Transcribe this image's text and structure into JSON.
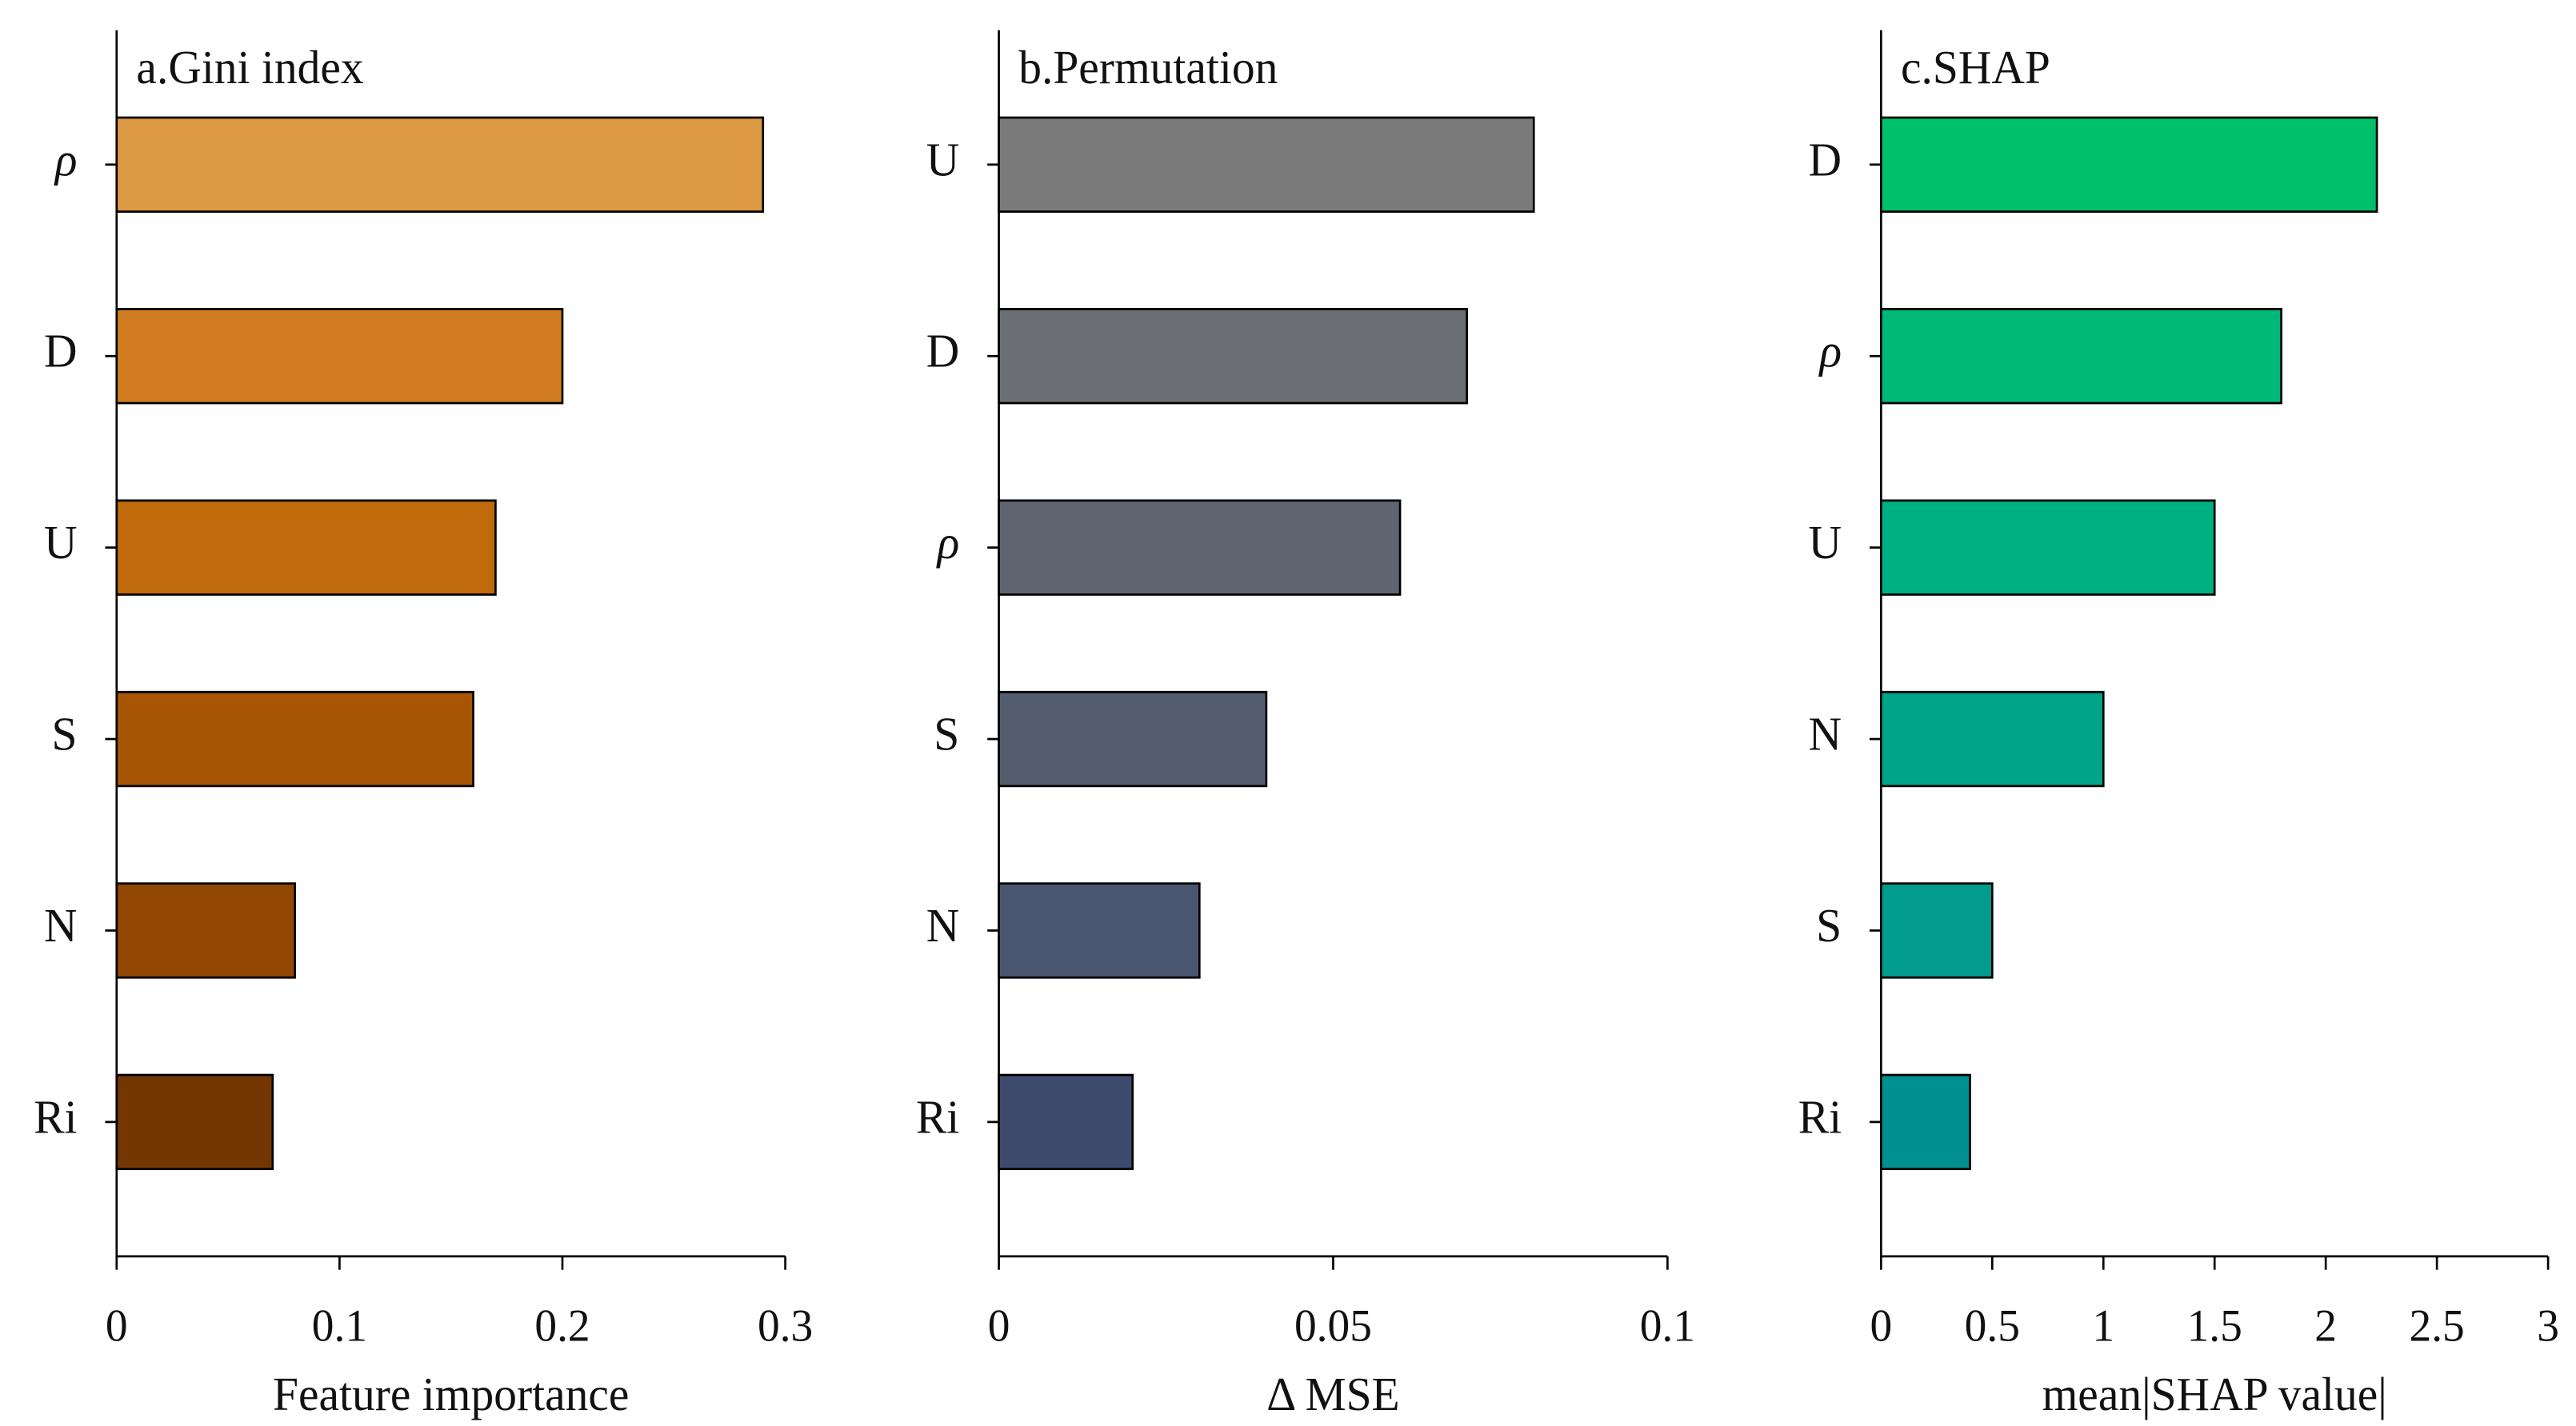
{
  "chart_data": [
    {
      "type": "bar",
      "orientation": "horizontal",
      "title": "a.Gini index",
      "x_label": "Feature importance",
      "categories": [
        "ρ",
        "D",
        "U",
        "S",
        "N",
        "Ri"
      ],
      "values": [
        0.29,
        0.2,
        0.17,
        0.16,
        0.08,
        0.07
      ],
      "colors": [
        "#dc9a45",
        "#d17e22",
        "#bf6a0b",
        "#a85505",
        "#924703",
        "#743602"
      ],
      "xlim": [
        0,
        0.3
      ],
      "xticks": [
        0,
        0.1,
        0.2,
        0.3
      ]
    },
    {
      "type": "bar",
      "orientation": "horizontal",
      "title": "b.Permutation",
      "x_label": "Δ MSE",
      "categories": [
        "U",
        "D",
        "ρ",
        "S",
        "N",
        "Ri"
      ],
      "values": [
        0.08,
        0.07,
        0.06,
        0.04,
        0.03,
        0.02
      ],
      "colors": [
        "#7a7a7a",
        "#6b6e72",
        "#606571",
        "#545d6d",
        "#4a5670",
        "#3e4b6d"
      ],
      "xlim": [
        0,
        0.1
      ],
      "xticks": [
        0,
        0.05,
        0.1
      ]
    },
    {
      "type": "bar",
      "orientation": "horizontal",
      "title": "c.SHAP",
      "x_label": "mean|SHAP value|",
      "categories": [
        "D",
        "ρ",
        "U",
        "N",
        "S",
        "Ri"
      ],
      "values": [
        2.23,
        1.8,
        1.5,
        1.0,
        0.5,
        0.4
      ],
      "colors": [
        "#00c16a",
        "#00b878",
        "#00b083",
        "#00a487",
        "#009c8e",
        "#009090"
      ],
      "xlim": [
        0,
        3
      ],
      "xticks": [
        0,
        0.5,
        1,
        1.5,
        2,
        2.5,
        3
      ]
    }
  ]
}
